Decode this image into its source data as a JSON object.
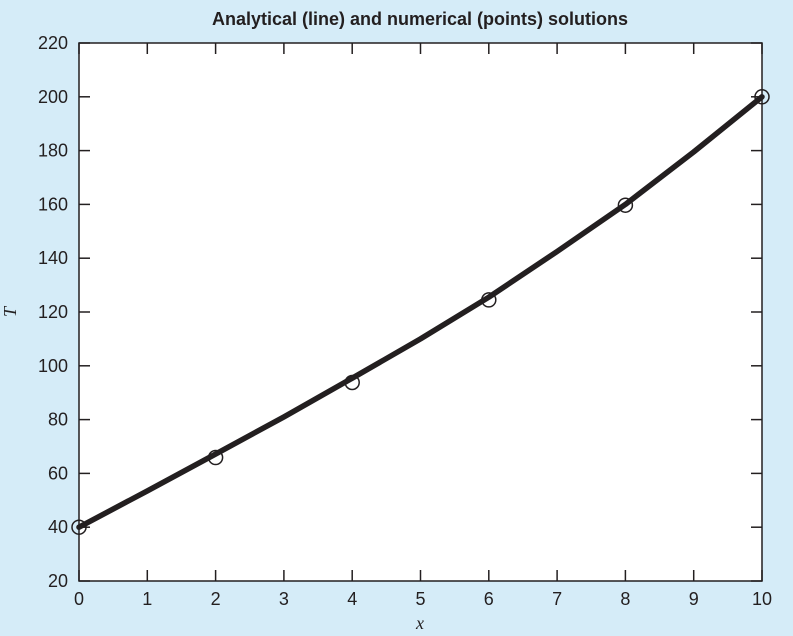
{
  "chart_data": {
    "type": "line",
    "title": "Analytical (line) and numerical (points) solutions",
    "xlabel": "x",
    "ylabel": "T",
    "xlim": [
      0,
      10
    ],
    "ylim": [
      20,
      220
    ],
    "x_ticks": [
      0,
      1,
      2,
      3,
      4,
      5,
      6,
      7,
      8,
      9,
      10
    ],
    "y_ticks": [
      20,
      40,
      60,
      80,
      100,
      120,
      140,
      160,
      180,
      200,
      220
    ],
    "grid": false,
    "series": [
      {
        "style": "line",
        "color": "#231f20",
        "x": [
          0,
          1,
          2,
          3,
          4,
          5,
          6,
          7,
          8,
          9,
          10
        ],
        "y": [
          40,
          53.5,
          67.2,
          81,
          95.4,
          110,
          125.5,
          142.5,
          160,
          179.5,
          200
        ]
      },
      {
        "style": "points",
        "marker": "open-circle",
        "color": "#231f20",
        "x": [
          0,
          2,
          4,
          6,
          8,
          10
        ],
        "y": [
          40,
          65.9,
          93.8,
          124.5,
          159.7,
          200
        ]
      }
    ]
  }
}
